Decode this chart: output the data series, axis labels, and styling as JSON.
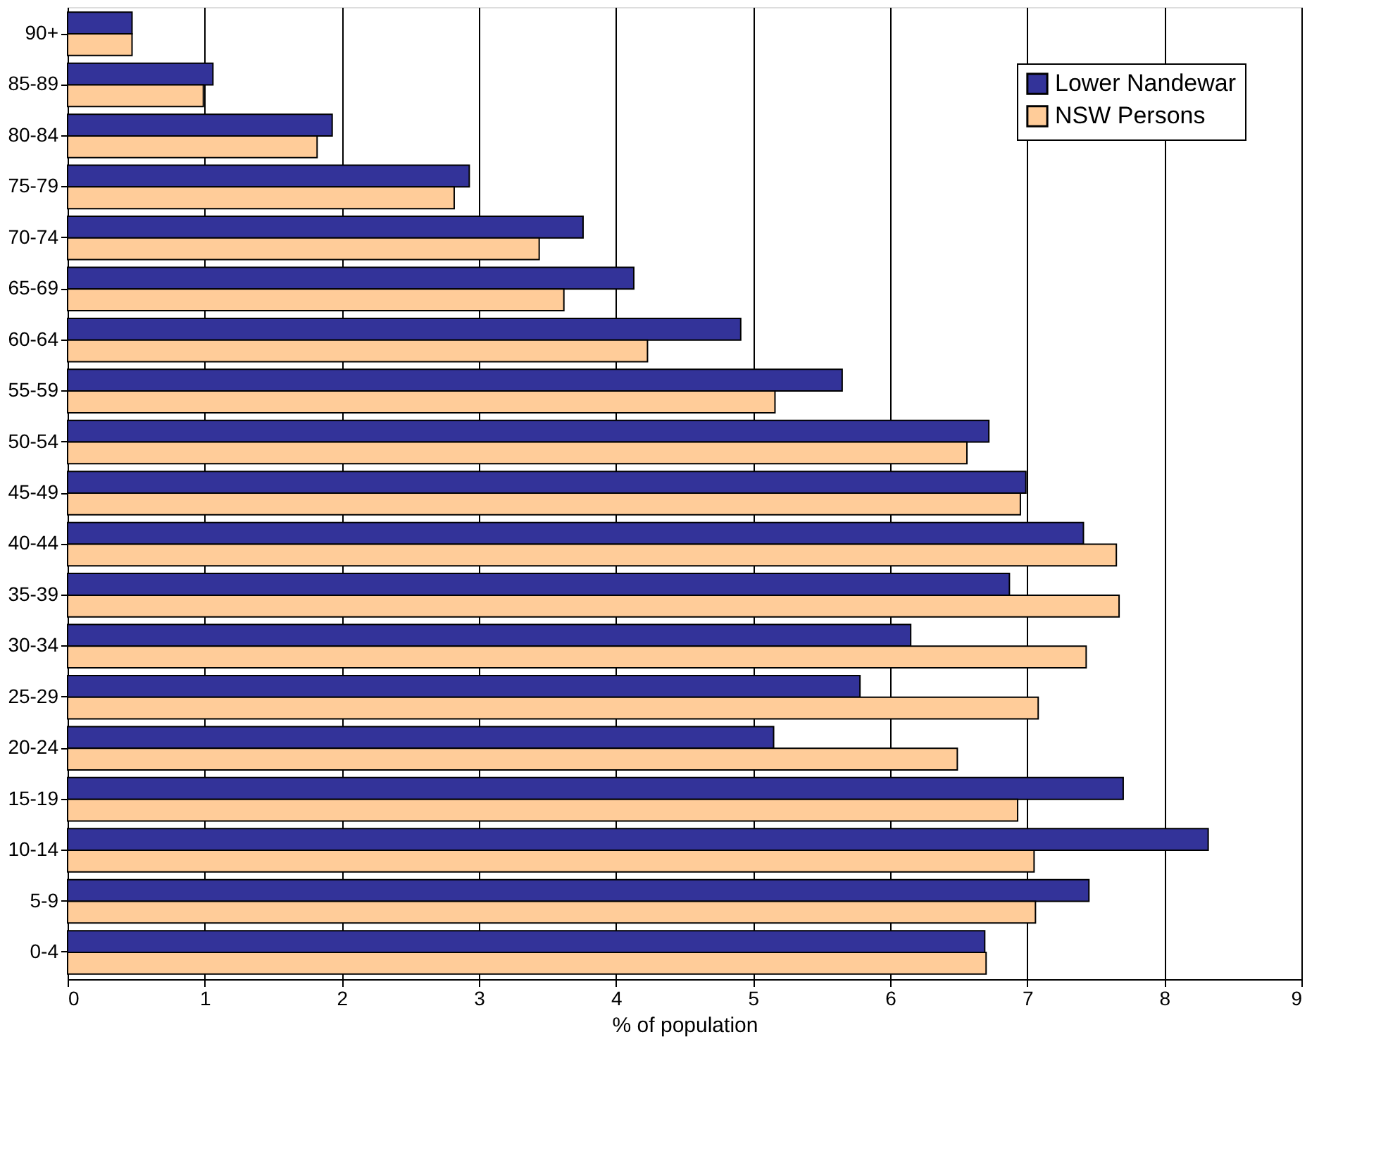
{
  "chart_data": {
    "type": "bar",
    "orientation": "horizontal",
    "xlabel": "% of population",
    "categories": [
      "90+",
      "85-89",
      "80-84",
      "75-79",
      "70-74",
      "65-69",
      "60-64",
      "55-59",
      "50-54",
      "45-49",
      "40-44",
      "35-39",
      "30-34",
      "25-29",
      "20-24",
      "15-19",
      "10-14",
      "5-9",
      "0-4"
    ],
    "series": [
      {
        "name": "Lower Nandewar",
        "color": "#333399",
        "values": [
          0.47,
          1.06,
          1.93,
          2.93,
          3.76,
          4.13,
          4.91,
          5.65,
          6.72,
          6.99,
          7.41,
          6.87,
          6.15,
          5.78,
          5.15,
          7.7,
          8.32,
          7.45,
          6.69
        ]
      },
      {
        "name": "NSW Persons",
        "color": "#ffcc99",
        "values": [
          0.47,
          0.99,
          1.82,
          2.82,
          3.44,
          3.62,
          4.23,
          5.16,
          6.56,
          6.95,
          7.65,
          7.67,
          7.43,
          7.08,
          6.49,
          6.93,
          7.05,
          7.06,
          6.7
        ]
      }
    ],
    "xlim": [
      0,
      9
    ],
    "xticks": [
      0,
      1,
      2,
      3,
      4,
      5,
      6,
      7,
      8,
      9
    ],
    "grid": "x",
    "legend": "top right"
  }
}
